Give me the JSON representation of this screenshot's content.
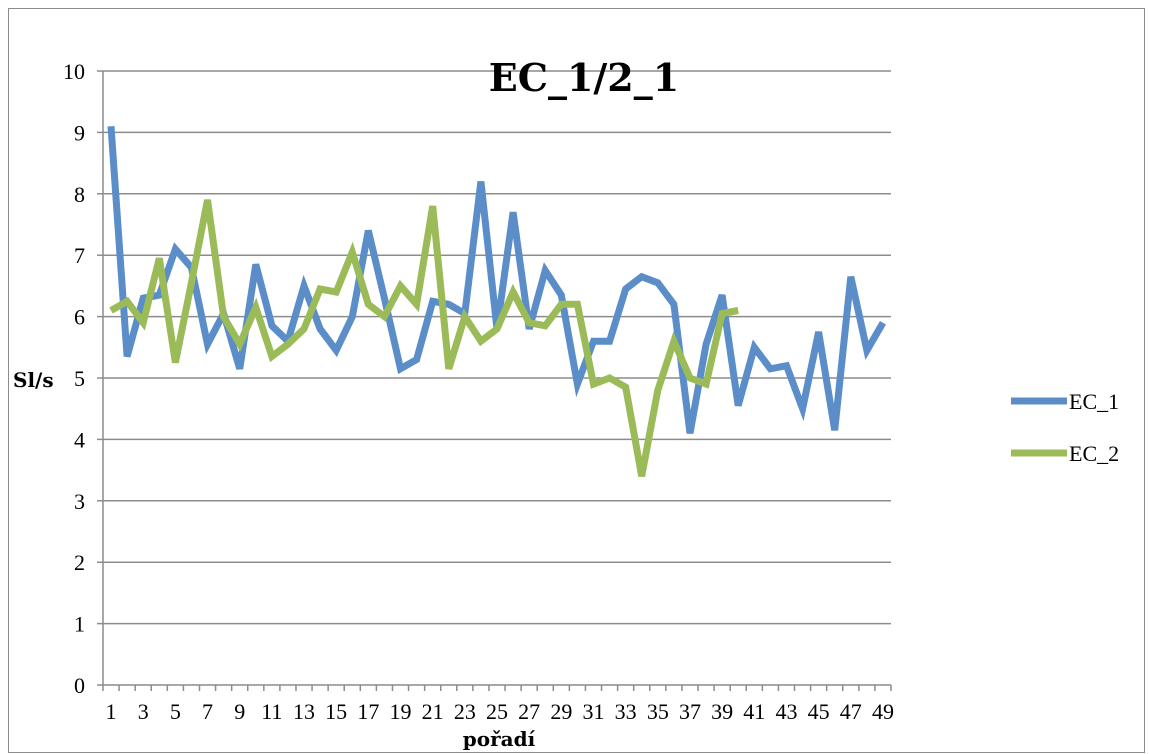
{
  "chart_data": {
    "type": "line",
    "title": "EC_1/2_1",
    "xlabel": "pořadí",
    "ylabel": "Sl/s",
    "ylim": [
      0,
      10
    ],
    "yticks": [
      "0",
      "1",
      "2",
      "3",
      "4",
      "5",
      "6",
      "7",
      "8",
      "9",
      "10"
    ],
    "xticks": [
      "1",
      "3",
      "5",
      "7",
      "9",
      "11",
      "13",
      "15",
      "17",
      "19",
      "21",
      "23",
      "25",
      "27",
      "29",
      "31",
      "33",
      "35",
      "37",
      "39",
      "41",
      "43",
      "45",
      "47",
      "49"
    ],
    "grid": true,
    "legend": "right",
    "x_count": 49,
    "series": [
      {
        "name": "EC_1",
        "color": "#5b8ec9",
        "values": [
          9.1,
          5.35,
          6.3,
          6.35,
          7.1,
          6.8,
          5.55,
          6.05,
          5.15,
          6.85,
          5.85,
          5.6,
          6.5,
          5.8,
          5.45,
          6.0,
          7.4,
          6.3,
          5.15,
          5.3,
          6.25,
          6.2,
          6.05,
          8.2,
          5.8,
          7.7,
          5.8,
          6.75,
          6.35,
          4.9,
          5.6,
          5.6,
          6.45,
          6.65,
          6.55,
          6.2,
          4.1,
          5.55,
          6.35,
          4.55,
          5.5,
          5.15,
          5.2,
          4.5,
          5.75,
          4.15,
          6.65,
          5.45,
          5.9
        ]
      },
      {
        "name": "EC_2",
        "color": "#9bbb59",
        "values": [
          6.1,
          6.25,
          5.9,
          6.95,
          5.25,
          6.55,
          7.9,
          6.0,
          5.55,
          6.15,
          5.35,
          5.55,
          5.8,
          6.45,
          6.4,
          7.05,
          6.2,
          6.0,
          6.5,
          6.2,
          7.8,
          5.15,
          6.0,
          5.6,
          5.8,
          6.4,
          5.9,
          5.85,
          6.2,
          6.2,
          4.9,
          5.0,
          4.85,
          3.4,
          4.8,
          5.6,
          5.0,
          4.9,
          6.05,
          6.1
        ]
      }
    ]
  }
}
